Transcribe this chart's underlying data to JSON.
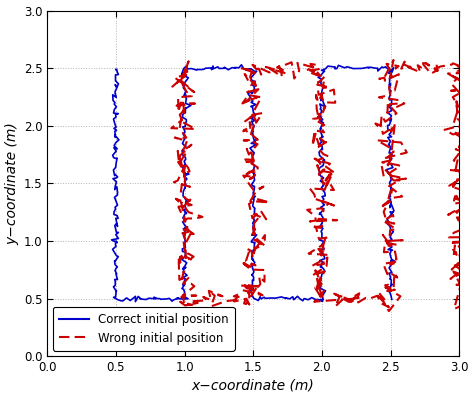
{
  "xlim": [
    0,
    3
  ],
  "ylim": [
    0,
    3
  ],
  "xticks": [
    0,
    0.5,
    1,
    1.5,
    2,
    2.5,
    3
  ],
  "yticks": [
    0,
    0.5,
    1,
    1.5,
    2,
    2.5,
    3
  ],
  "xlabel": "x−coordinate (m)",
  "ylabel": "y−coordinate (m)",
  "blue_color": "#0000cc",
  "red_color": "#cc0000",
  "legend_labels": [
    "Correct initial position",
    "Wrong initial position"
  ],
  "grid_color": "#aaaaaa",
  "bg_color": "#ffffff",
  "noise_scale_blue": 0.012,
  "noise_scale_red": 0.045,
  "blue_seed": 42,
  "red_seed": 77
}
